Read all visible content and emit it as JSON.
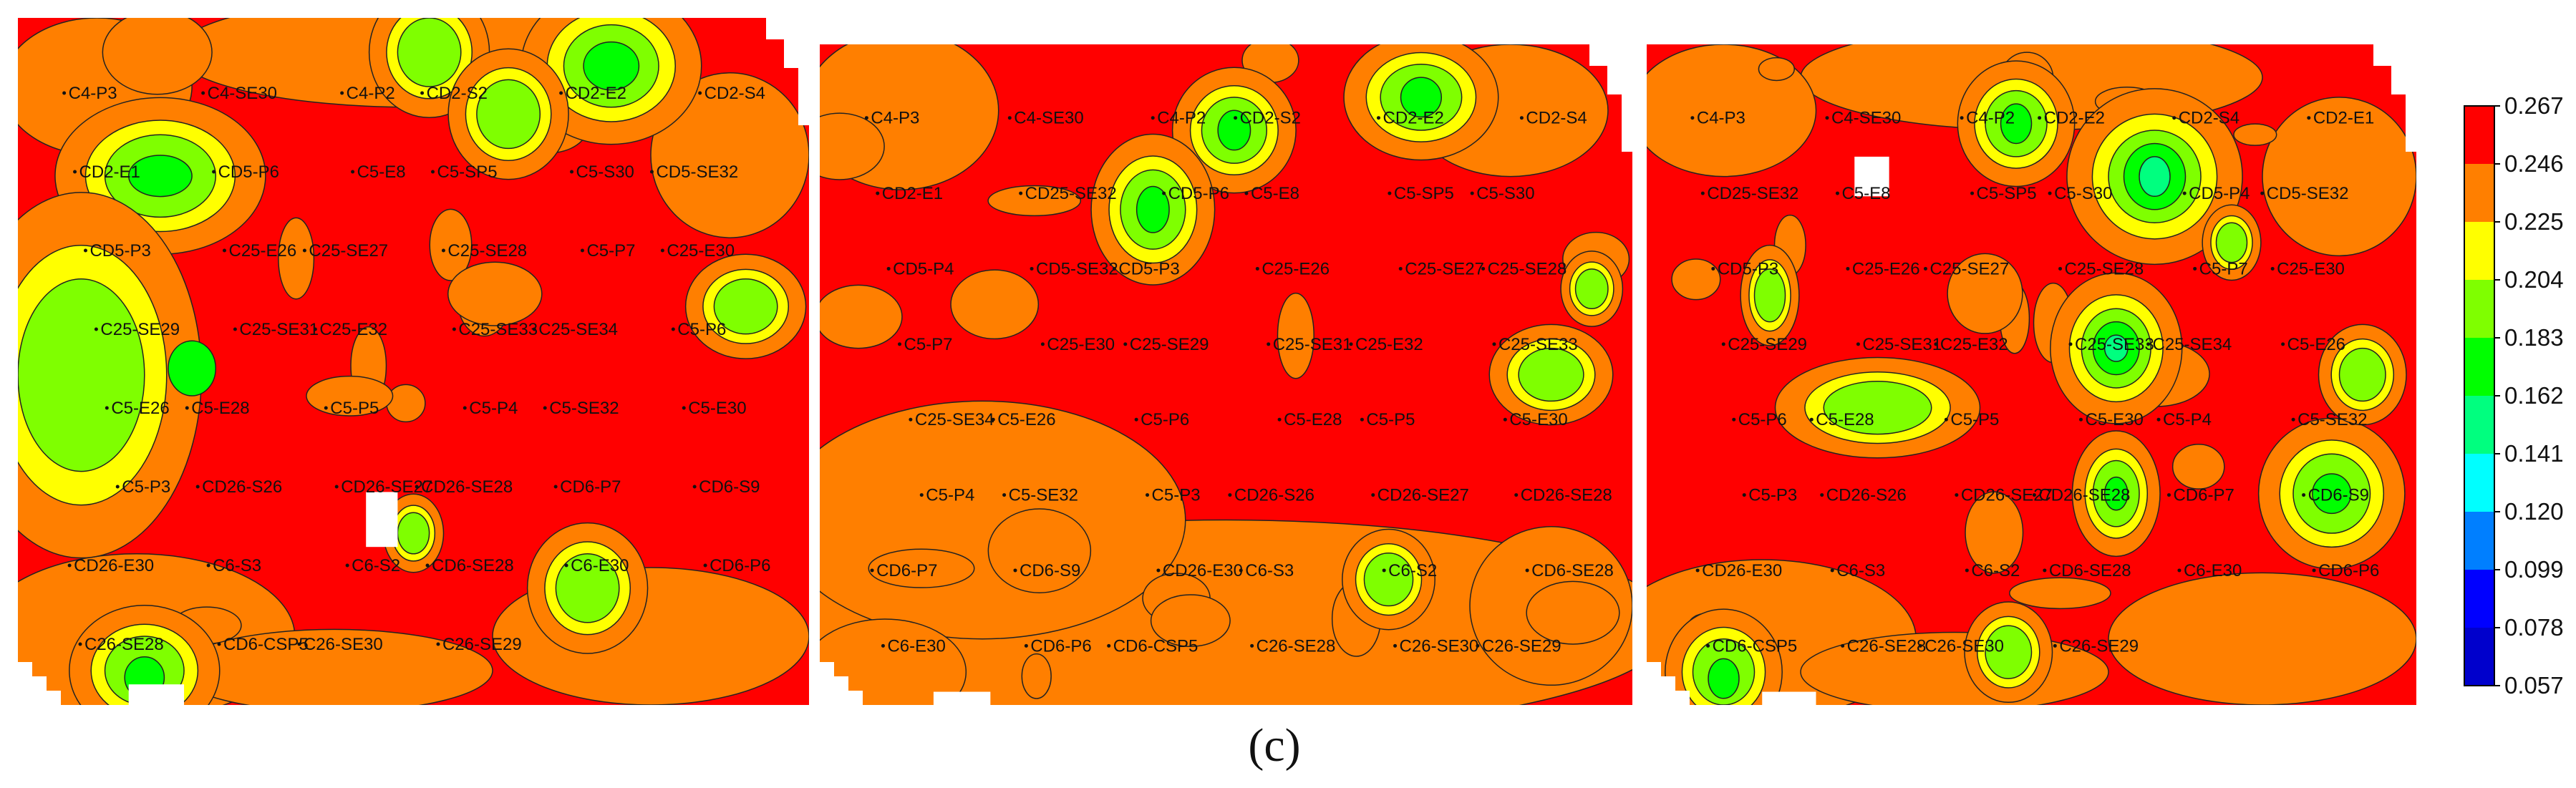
{
  "caption": "(c)",
  "chart_data": {
    "type": "heatmap",
    "colorbar": {
      "ticks": [
        "0.267",
        "0.246",
        "0.225",
        "0.204",
        "0.183",
        "0.162",
        "0.141",
        "0.120",
        "0.099",
        "0.078",
        "0.057"
      ],
      "colors": [
        "#ff0000",
        "#ff7f00",
        "#ffff00",
        "#7fff00",
        "#00ff00",
        "#00ff7f",
        "#00ffff",
        "#007fff",
        "#0000ff",
        "#0000cc"
      ]
    },
    "panels": [
      {
        "labels": [
          "C4-P3",
          "C4-SE30",
          "C4-P2",
          "CD2-S2",
          "CD2-E2",
          "CD2-S4",
          "CD2-E1",
          "CD5-P6",
          "C5-E8",
          "C5-SP5",
          "C5-S30",
          "CD5-SE32",
          "CD5-P3",
          "C25-E26",
          "C25-SE27",
          "C25-SE28",
          "C5-P7",
          "C25-E30",
          "C25-SE29",
          "C25-SE31",
          "C25-E32",
          "C25-SE33",
          "C25-SE34",
          "C5-P6",
          "C5-E26",
          "C5-E28",
          "C5-P5",
          "C5-P4",
          "C5-SE32",
          "C5-E30",
          "C5-P3",
          "CD26-S26",
          "CD26-SE27",
          "CD26-SE28",
          "CD6-P7",
          "CD6-S9",
          "CD26-E30",
          "C6-S3",
          "C6-S2",
          "CD6-SE28",
          "C6-E30",
          "CD6-P6",
          "C26-SE28",
          "CD6-CSP5",
          "C26-SE30",
          "C26-SE29"
        ],
        "hotspots": [
          {
            "x": 0.75,
            "y": 0.07,
            "rx": 0.06,
            "ry": 0.06,
            "level": 0.204
          },
          {
            "x": 0.75,
            "y": 0.07,
            "rx": 0.035,
            "ry": 0.035,
            "level": 0.183
          },
          {
            "x": 0.52,
            "y": 0.05,
            "rx": 0.04,
            "ry": 0.05,
            "level": 0.204
          },
          {
            "x": 0.62,
            "y": 0.14,
            "rx": 0.04,
            "ry": 0.05,
            "level": 0.204
          },
          {
            "x": 0.18,
            "y": 0.23,
            "rx": 0.07,
            "ry": 0.06,
            "level": 0.204
          },
          {
            "x": 0.18,
            "y": 0.23,
            "rx": 0.04,
            "ry": 0.03,
            "level": 0.183
          },
          {
            "x": 0.08,
            "y": 0.52,
            "rx": 0.08,
            "ry": 0.14,
            "level": 0.204
          },
          {
            "x": 0.22,
            "y": 0.51,
            "rx": 0.03,
            "ry": 0.04,
            "level": 0.183
          },
          {
            "x": 0.72,
            "y": 0.83,
            "rx": 0.04,
            "ry": 0.05,
            "level": 0.204
          },
          {
            "x": 0.16,
            "y": 0.95,
            "rx": 0.05,
            "ry": 0.05,
            "level": 0.204
          },
          {
            "x": 0.16,
            "y": 0.96,
            "rx": 0.025,
            "ry": 0.03,
            "level": 0.183
          },
          {
            "x": 0.92,
            "y": 0.42,
            "rx": 0.04,
            "ry": 0.04,
            "level": 0.204
          },
          {
            "x": 0.5,
            "y": 0.75,
            "rx": 0.02,
            "ry": 0.03,
            "level": 0.204
          }
        ]
      },
      {
        "labels": [
          "C4-P3",
          "C4-SE30",
          "C4-P2",
          "CD2-S2",
          "CD2-E2",
          "CD2-S4",
          "CD2-E1",
          "CD25-SE32",
          "CD5-P6",
          "C5-E8",
          "C5-SP5",
          "C5-S30",
          "CD5-P4",
          "CD5-SE32",
          "CD5-P3",
          "C25-E26",
          "C25-SE27",
          "C25-SE28",
          "C5-P7",
          "C25-E30",
          "C25-SE29",
          "C25-SE31",
          "C25-E32",
          "C25-SE33",
          "C25-SE34",
          "C5-E26",
          "C5-P6",
          "C5-E28",
          "C5-P5",
          "C5-E30",
          "C5-P4",
          "C5-SE32",
          "C5-P3",
          "CD26-S26",
          "CD26-SE27",
          "CD26-SE28",
          "CD6-P7",
          "CD6-S9",
          "CD26-E30",
          "C6-S3",
          "C6-S2",
          "CD6-SE28",
          "C6-E30",
          "CD6-P6",
          "CD6-CSP5",
          "C26-SE28",
          "C26-SE30",
          "C26-SE29"
        ],
        "hotspots": [
          {
            "x": 0.74,
            "y": 0.08,
            "rx": 0.05,
            "ry": 0.05,
            "level": 0.204
          },
          {
            "x": 0.74,
            "y": 0.08,
            "rx": 0.025,
            "ry": 0.03,
            "level": 0.183
          },
          {
            "x": 0.51,
            "y": 0.13,
            "rx": 0.04,
            "ry": 0.05,
            "level": 0.204
          },
          {
            "x": 0.51,
            "y": 0.13,
            "rx": 0.02,
            "ry": 0.03,
            "level": 0.183
          },
          {
            "x": 0.41,
            "y": 0.25,
            "rx": 0.04,
            "ry": 0.06,
            "level": 0.204
          },
          {
            "x": 0.41,
            "y": 0.25,
            "rx": 0.02,
            "ry": 0.035,
            "level": 0.183
          },
          {
            "x": 0.9,
            "y": 0.5,
            "rx": 0.04,
            "ry": 0.04,
            "level": 0.204
          },
          {
            "x": 0.7,
            "y": 0.81,
            "rx": 0.03,
            "ry": 0.04,
            "level": 0.204
          },
          {
            "x": 0.95,
            "y": 0.37,
            "rx": 0.02,
            "ry": 0.03,
            "level": 0.204
          }
        ]
      },
      {
        "labels": [
          "C4-P3",
          "C4-SE30",
          "C4-P2",
          "CD2-E2",
          "CD2-S4",
          "CD2-E1",
          "CD25-SE32",
          "C5-E8",
          "C5-SP5",
          "C5-S30",
          "CD5-P4",
          "CD5-SE32",
          "CD5-P3",
          "C25-E26",
          "C25-SE27",
          "C25-SE28",
          "C5-P7",
          "C25-E30",
          "C25-SE29",
          "C25-SE31",
          "C25-E32",
          "C25-SE33",
          "C25-SE34",
          "C5-E26",
          "C5-P6",
          "C5-E28",
          "C5-P5",
          "C5-E30",
          "C5-P4",
          "C5-SE32",
          "C5-P3",
          "CD26-S26",
          "CD26-SE27",
          "CD26-SE28",
          "CD6-P7",
          "CD6-S9",
          "CD26-E30",
          "C6-S3",
          "C6-S2",
          "CD6-SE28",
          "C6-E30",
          "CD6-P6",
          "CD6-CSP5",
          "C26-SE28",
          "C26-SE30",
          "C26-SE29"
        ],
        "hotspots": [
          {
            "x": 0.66,
            "y": 0.2,
            "rx": 0.06,
            "ry": 0.07,
            "level": 0.204
          },
          {
            "x": 0.66,
            "y": 0.2,
            "rx": 0.04,
            "ry": 0.05,
            "level": 0.183
          },
          {
            "x": 0.66,
            "y": 0.2,
            "rx": 0.02,
            "ry": 0.03,
            "level": 0.162
          },
          {
            "x": 0.48,
            "y": 0.12,
            "rx": 0.04,
            "ry": 0.05,
            "level": 0.204
          },
          {
            "x": 0.48,
            "y": 0.12,
            "rx": 0.02,
            "ry": 0.03,
            "level": 0.183
          },
          {
            "x": 0.61,
            "y": 0.46,
            "rx": 0.045,
            "ry": 0.06,
            "level": 0.204
          },
          {
            "x": 0.61,
            "y": 0.46,
            "rx": 0.03,
            "ry": 0.04,
            "level": 0.183
          },
          {
            "x": 0.61,
            "y": 0.46,
            "rx": 0.015,
            "ry": 0.02,
            "level": 0.162
          },
          {
            "x": 0.61,
            "y": 0.68,
            "rx": 0.03,
            "ry": 0.05,
            "level": 0.204
          },
          {
            "x": 0.61,
            "y": 0.68,
            "rx": 0.015,
            "ry": 0.025,
            "level": 0.183
          },
          {
            "x": 0.89,
            "y": 0.68,
            "rx": 0.05,
            "ry": 0.06,
            "level": 0.204
          },
          {
            "x": 0.89,
            "y": 0.68,
            "rx": 0.025,
            "ry": 0.03,
            "level": 0.183
          },
          {
            "x": 0.3,
            "y": 0.55,
            "rx": 0.07,
            "ry": 0.04,
            "level": 0.204
          },
          {
            "x": 0.76,
            "y": 0.3,
            "rx": 0.02,
            "ry": 0.03,
            "level": 0.204
          },
          {
            "x": 0.16,
            "y": 0.38,
            "rx": 0.02,
            "ry": 0.04,
            "level": 0.204
          },
          {
            "x": 0.1,
            "y": 0.95,
            "rx": 0.04,
            "ry": 0.05,
            "level": 0.204
          },
          {
            "x": 0.1,
            "y": 0.96,
            "rx": 0.02,
            "ry": 0.03,
            "level": 0.183
          },
          {
            "x": 0.47,
            "y": 0.92,
            "rx": 0.03,
            "ry": 0.04,
            "level": 0.204
          },
          {
            "x": 0.93,
            "y": 0.5,
            "rx": 0.03,
            "ry": 0.04,
            "level": 0.204
          }
        ]
      }
    ]
  }
}
